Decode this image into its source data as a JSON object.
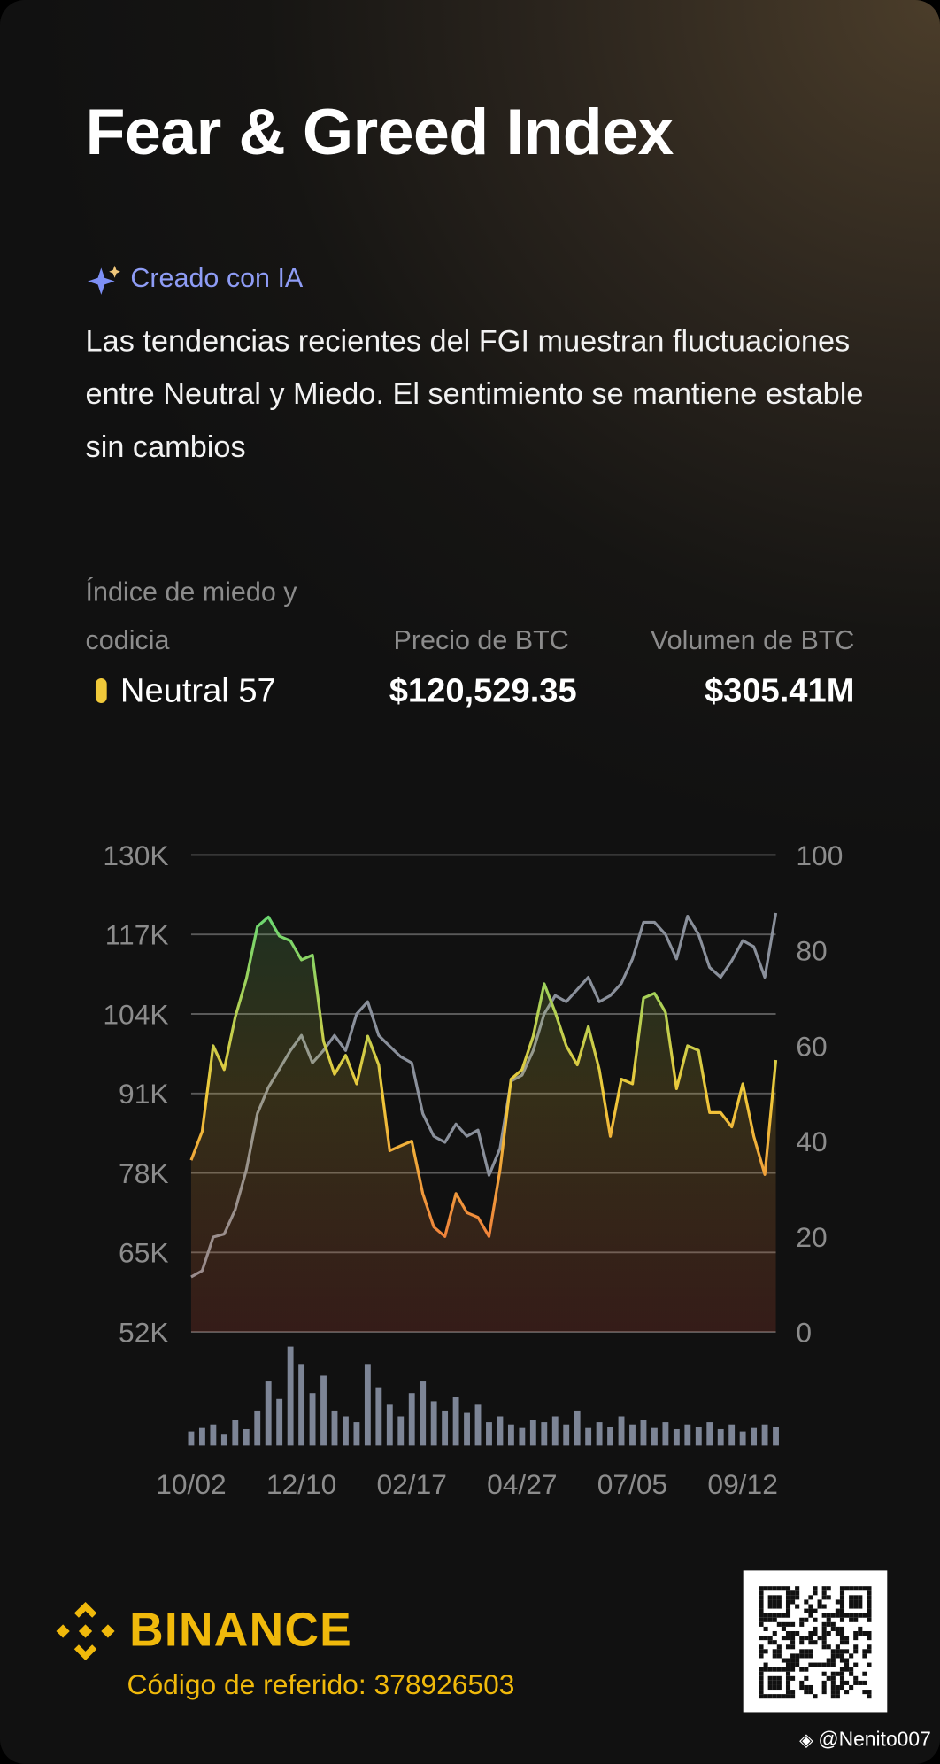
{
  "header": {
    "title": "Fear & Greed Index",
    "ai_badge": "Creado con IA",
    "summary": "Las tendencias recientes del FGI muestran fluctuaciones entre Neutral y Miedo. El sentimiento se mantiene estable sin cambios"
  },
  "stats": [
    {
      "label": "Índice de miedo y codicia",
      "value": "Neutral 57",
      "indicator_color": "#f0c93a"
    },
    {
      "label": "Precio de BTC",
      "value": "$120,529.35"
    },
    {
      "label": "Volumen de BTC",
      "value": "$305.41M"
    }
  ],
  "chart_data": {
    "type": "line",
    "categories": [
      "10/02",
      null,
      null,
      null,
      null,
      null,
      null,
      null,
      null,
      null,
      "12/10",
      null,
      null,
      null,
      null,
      null,
      null,
      null,
      null,
      null,
      "02/17",
      null,
      null,
      null,
      null,
      null,
      null,
      null,
      null,
      null,
      "04/27",
      null,
      null,
      null,
      null,
      null,
      null,
      null,
      null,
      null,
      "07/05",
      null,
      null,
      null,
      null,
      null,
      null,
      null,
      null,
      null,
      "09/12",
      null,
      null,
      null
    ],
    "series": [
      {
        "color": "#8a909b",
        "values": [
          61000,
          62000,
          67500,
          68000,
          72000,
          78500,
          87700,
          92000,
          95000,
          98000,
          100500,
          96000,
          98000,
          100500,
          98000,
          104000,
          106000,
          100500,
          98700,
          97000,
          96000,
          87700,
          84000,
          83000,
          86000,
          84000,
          85000,
          77600,
          82000,
          93000,
          94000,
          98000,
          104000,
          107000,
          106000,
          108000,
          110000,
          106000,
          107000,
          109000,
          113000,
          119000,
          119000,
          117000,
          113000,
          120000,
          117000,
          111600,
          110000,
          112700,
          116000,
          115000,
          110000,
          120500
        ]
      },
      {
        "axis": "y2",
        "colors": [
          "#3ddc84",
          "#f0c93a",
          "#f0553c"
        ],
        "values": [
          36,
          42,
          60,
          55,
          66,
          74,
          85,
          87,
          83,
          82,
          78,
          79,
          61,
          54,
          58,
          52,
          62,
          56,
          38,
          39,
          40,
          29,
          22,
          20,
          29,
          25,
          24,
          20,
          34,
          53,
          55,
          62,
          73,
          67,
          60,
          56,
          64,
          55,
          41,
          53,
          52,
          70,
          71,
          67,
          51,
          60,
          59,
          46,
          46,
          43,
          52,
          41,
          33,
          57
        ]
      },
      {
        "type": "bar",
        "color": "#7d8596",
        "values": [
          12,
          15,
          18,
          10,
          22,
          14,
          30,
          55,
          40,
          85,
          70,
          45,
          60,
          30,
          25,
          20,
          70,
          50,
          35,
          25,
          45,
          55,
          38,
          30,
          42,
          28,
          35,
          20,
          25,
          18,
          15,
          22,
          20,
          25,
          18,
          30,
          15,
          20,
          16,
          25,
          18,
          22,
          15,
          20,
          14,
          18,
          16,
          20,
          14,
          18,
          12,
          15,
          18,
          16
        ]
      }
    ],
    "ylim": [
      52000,
      130000
    ],
    "yticks": [
      {
        "value": 52000,
        "label": "52K"
      },
      {
        "value": 65000,
        "label": "65K"
      },
      {
        "value": 78000,
        "label": "78K"
      },
      {
        "value": 91000,
        "label": "91K"
      },
      {
        "value": 104000,
        "label": "104K"
      },
      {
        "value": 117000,
        "label": "117K"
      },
      {
        "value": 130000,
        "label": "130K"
      }
    ],
    "y2lim": [
      0,
      100
    ],
    "y2ticks": [
      0,
      20,
      40,
      60,
      80,
      100
    ],
    "grid": true
  },
  "footer": {
    "brand": "BINANCE",
    "referral": "Código de referido: 378926503",
    "handle": "@Nenito007"
  }
}
